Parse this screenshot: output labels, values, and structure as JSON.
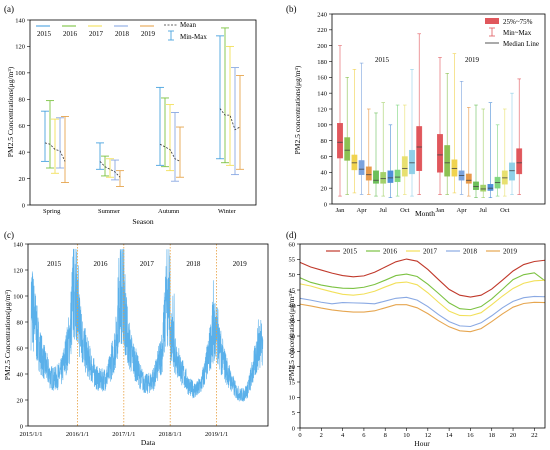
{
  "chart_data": [
    {
      "panel_label": "(a)",
      "type": "line",
      "xlabel": "Season",
      "ylabel": "PM2.5 Concentrations(μg/m³)",
      "ylim": [
        0,
        140
      ],
      "yticks": [
        0,
        20,
        40,
        60,
        80,
        100,
        120,
        140
      ],
      "categories": [
        "Spring",
        "Summer",
        "Autumn",
        "Winter"
      ],
      "legend": {
        "years": [
          "2015",
          "2016",
          "2017",
          "2018",
          "2019"
        ],
        "mean_label": "Mean",
        "minmax_label": "Min-Max",
        "position": "top"
      },
      "series": [
        {
          "name": "2015",
          "color": "#4aa3df",
          "mean": [
            47,
            33,
            46,
            73
          ],
          "min": [
            33,
            27,
            30,
            35
          ],
          "max": [
            71,
            47,
            89,
            128
          ]
        },
        {
          "name": "2016",
          "color": "#7cc242",
          "mean": [
            46,
            29,
            44,
            68
          ],
          "min": [
            28,
            22,
            29,
            32
          ],
          "max": [
            79,
            37,
            81,
            134
          ]
        },
        {
          "name": "2017",
          "color": "#f2e05a",
          "mean": [
            42,
            27,
            42,
            68
          ],
          "min": [
            24,
            21,
            26,
            30
          ],
          "max": [
            65,
            35,
            76,
            120
          ]
        },
        {
          "name": "2018",
          "color": "#8aa9e3",
          "mean": [
            41,
            25,
            35,
            57
          ],
          "min": [
            28,
            19,
            18,
            23
          ],
          "max": [
            66,
            34,
            70,
            104
          ]
        },
        {
          "name": "2019",
          "color": "#e6a650",
          "mean": [
            33,
            21,
            33,
            59
          ],
          "min": [
            17,
            14,
            21,
            27
          ],
          "max": [
            67,
            26,
            59,
            98
          ]
        }
      ]
    },
    {
      "panel_label": "(b)",
      "type": "box",
      "xlabel": "Month",
      "ylabel": "PM2.5 concentrations(μg/m³)",
      "ylim": [
        0,
        240
      ],
      "yticks": [
        0,
        20,
        40,
        60,
        80,
        100,
        120,
        140,
        160,
        180,
        200,
        220,
        240
      ],
      "xtick_labels": [
        "Jan",
        "Apr",
        "Jul",
        "Oct",
        "Jan",
        "Apr",
        "Jul",
        "Oct"
      ],
      "year_labels": [
        "2015",
        "2019"
      ],
      "legend": {
        "box_label": "25%~75%",
        "whisker_label": "Min~Max",
        "median_label": "Median Line",
        "position": "top-right"
      },
      "month_colors": [
        "#e0575c",
        "#8cc152",
        "#f0d34f",
        "#7ba3de",
        "#e89a4a",
        "#6cbf5a",
        "#a3d06a",
        "#4f8fd8",
        "#7fd67f",
        "#e8e070",
        "#8fd0e8",
        "#e0575c"
      ],
      "boxes_2015": [
        {
          "min": 10,
          "q1": 58,
          "median": 78,
          "q3": 102,
          "max": 200
        },
        {
          "min": 12,
          "q1": 55,
          "median": 68,
          "q3": 84,
          "max": 160
        },
        {
          "min": 14,
          "q1": 43,
          "median": 52,
          "q3": 62,
          "max": 170
        },
        {
          "min": 12,
          "q1": 37,
          "median": 44,
          "q3": 55,
          "max": 178
        },
        {
          "min": 12,
          "q1": 30,
          "median": 37,
          "q3": 47,
          "max": 120
        },
        {
          "min": 10,
          "q1": 26,
          "median": 30,
          "q3": 42,
          "max": 115
        },
        {
          "min": 10,
          "q1": 26,
          "median": 32,
          "q3": 40,
          "max": 128
        },
        {
          "min": 8,
          "q1": 27,
          "median": 33,
          "q3": 42,
          "max": 100
        },
        {
          "min": 10,
          "q1": 28,
          "median": 34,
          "q3": 43,
          "max": 125
        },
        {
          "min": 12,
          "q1": 35,
          "median": 45,
          "q3": 60,
          "max": 125
        },
        {
          "min": 10,
          "q1": 38,
          "median": 52,
          "q3": 68,
          "max": 170
        },
        {
          "min": 12,
          "q1": 42,
          "median": 72,
          "q3": 98,
          "max": 215
        }
      ],
      "boxes_2019": [
        {
          "min": 12,
          "q1": 40,
          "median": 62,
          "q3": 88,
          "max": 185
        },
        {
          "min": 12,
          "q1": 35,
          "median": 52,
          "q3": 74,
          "max": 165
        },
        {
          "min": 14,
          "q1": 35,
          "median": 45,
          "q3": 56,
          "max": 190
        },
        {
          "min": 12,
          "q1": 30,
          "median": 36,
          "q3": 42,
          "max": 155
        },
        {
          "min": 10,
          "q1": 26,
          "median": 30,
          "q3": 38,
          "max": 122
        },
        {
          "min": 8,
          "q1": 18,
          "median": 22,
          "q3": 28,
          "max": 125
        },
        {
          "min": 8,
          "q1": 16,
          "median": 19,
          "q3": 24,
          "max": 120
        },
        {
          "min": 8,
          "q1": 17,
          "median": 20,
          "q3": 25,
          "max": 128
        },
        {
          "min": 10,
          "q1": 20,
          "median": 27,
          "q3": 34,
          "max": 100
        },
        {
          "min": 10,
          "q1": 25,
          "median": 33,
          "q3": 42,
          "max": 120
        },
        {
          "min": 12,
          "q1": 30,
          "median": 42,
          "q3": 52,
          "max": 140
        },
        {
          "min": 12,
          "q1": 38,
          "median": 52,
          "q3": 70,
          "max": 158
        }
      ]
    },
    {
      "panel_label": "(c)",
      "type": "line",
      "xlabel": "Data",
      "ylabel": "PM2.5 Concentrations(μg/m³)",
      "ylim": [
        0,
        140
      ],
      "yticks": [
        0,
        20,
        40,
        60,
        80,
        100,
        120,
        140
      ],
      "xtick_labels": [
        "2015/1/1",
        "2016/1/1",
        "2017/1/1",
        "2018/1/1",
        "2019/1/1"
      ],
      "year_labels": [
        "2015",
        "2016",
        "2017",
        "2018",
        "2019"
      ],
      "line_color": "#5ab0ea",
      "separator_color": "#e8a040",
      "monthly_mean_approx": [
        [
          95,
          80,
          62,
          52,
          45,
          38,
          36,
          38,
          42,
          55,
          68,
          105
        ],
        [
          92,
          70,
          58,
          50,
          43,
          37,
          35,
          36,
          40,
          52,
          65,
          108
        ],
        [
          95,
          68,
          55,
          48,
          40,
          34,
          32,
          34,
          38,
          48,
          60,
          98
        ],
        [
          72,
          60,
          50,
          42,
          36,
          30,
          28,
          28,
          32,
          42,
          55,
          72
        ],
        [
          75,
          58,
          48,
          40,
          33,
          27,
          24,
          24,
          28,
          38,
          50,
          66
        ]
      ]
    },
    {
      "panel_label": "(d)",
      "type": "line",
      "xlabel": "Hour",
      "ylabel": "PM2.5 concentrations(μg/m³)",
      "xlim": [
        0,
        23
      ],
      "ylim": [
        0,
        60
      ],
      "xticks": [
        0,
        2,
        4,
        6,
        8,
        10,
        12,
        14,
        16,
        18,
        20,
        22
      ],
      "yticks": [
        0,
        5,
        10,
        15,
        20,
        25,
        30,
        35,
        40,
        45,
        50,
        55,
        60
      ],
      "x": [
        0,
        1,
        2,
        3,
        4,
        5,
        6,
        7,
        8,
        9,
        10,
        11,
        12,
        13,
        14,
        15,
        16,
        17,
        18,
        19,
        20,
        21,
        22,
        23
      ],
      "legend_position": "top",
      "series": [
        {
          "name": "2015",
          "color": "#c0392b",
          "values": [
            54.0,
            52.5,
            51.5,
            50.5,
            49.7,
            49.3,
            49.6,
            50.8,
            52.5,
            54.2,
            55.1,
            54.4,
            51.7,
            48.4,
            45.2,
            43.3,
            42.7,
            43.3,
            45.3,
            48.2,
            51.2,
            53.3,
            54.3,
            54.7
          ]
        },
        {
          "name": "2016",
          "color": "#7cc242",
          "values": [
            49.0,
            47.5,
            46.6,
            46.0,
            45.6,
            45.5,
            45.9,
            46.8,
            48.2,
            49.7,
            50.2,
            49.4,
            46.9,
            43.9,
            40.8,
            38.9,
            38.6,
            39.6,
            42.1,
            45.2,
            48.4,
            50.0,
            50.6,
            48.0
          ]
        },
        {
          "name": "2017",
          "color": "#f2e05a",
          "values": [
            47.0,
            46.3,
            45.3,
            44.4,
            43.6,
            43.3,
            43.7,
            44.6,
            46.0,
            47.3,
            47.6,
            46.7,
            44.1,
            41.0,
            38.1,
            36.7,
            36.6,
            37.6,
            40.2,
            43.0,
            45.5,
            47.2,
            48.0,
            48.2
          ]
        },
        {
          "name": "2018",
          "color": "#8aa9e3",
          "values": [
            42.3,
            41.7,
            41.0,
            40.5,
            40.9,
            40.8,
            40.7,
            40.5,
            41.4,
            42.3,
            42.6,
            41.7,
            39.6,
            37.0,
            34.7,
            33.3,
            33.1,
            34.3,
            36.6,
            39.2,
            41.3,
            42.5,
            42.9,
            42.8
          ]
        },
        {
          "name": "2019",
          "color": "#e6a650",
          "values": [
            40.4,
            39.8,
            39.1,
            38.5,
            38.1,
            37.8,
            37.8,
            38.2,
            39.2,
            40.2,
            40.2,
            39.2,
            37.3,
            35.0,
            33.0,
            31.7,
            31.4,
            32.4,
            34.7,
            37.2,
            39.4,
            40.6,
            41.0,
            40.9
          ]
        }
      ]
    }
  ]
}
